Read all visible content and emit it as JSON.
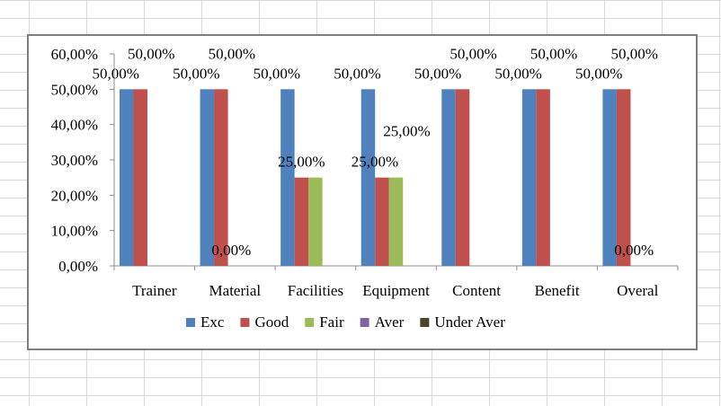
{
  "chart_data": {
    "type": "bar",
    "categories": [
      "Trainer",
      "Material",
      "Facilities",
      "Equipment",
      "Content",
      "Benefit",
      "Overal"
    ],
    "series": [
      {
        "name": "Exc",
        "color": "#4f81bd",
        "values": [
          0.5,
          0.5,
          0.5,
          0.5,
          0.5,
          0.5,
          0.5
        ]
      },
      {
        "name": "Good",
        "color": "#c0504d",
        "values": [
          0.5,
          0.5,
          0.25,
          0.25,
          0.5,
          0.5,
          0.5
        ]
      },
      {
        "name": "Fair",
        "color": "#9bbb59",
        "values": [
          0,
          0,
          0.25,
          0.25,
          0,
          0,
          0
        ]
      },
      {
        "name": "Aver",
        "color": "#8064a2",
        "values": [
          0,
          0,
          0,
          0,
          0,
          0,
          0
        ]
      },
      {
        "name": "Under Aver",
        "color": "#4a452a",
        "values": [
          0,
          0,
          0,
          0,
          0,
          0,
          0
        ]
      }
    ],
    "ylim": [
      0,
      0.6
    ],
    "yticks": [
      "0,00%",
      "10,00%",
      "20,00%",
      "30,00%",
      "40,00%",
      "50,00%",
      "60,00%"
    ],
    "data_labels": [
      {
        "text": "50,00%",
        "category": 0,
        "series": 0
      },
      {
        "text": "50,00%",
        "category": 0,
        "series": 1
      },
      {
        "text": "50,00%",
        "category": 1,
        "series": 0
      },
      {
        "text": "50,00%",
        "category": 1,
        "series": 1
      },
      {
        "text": "0,00%",
        "category": 1,
        "series": 2
      },
      {
        "text": "50,00%",
        "category": 2,
        "series": 0
      },
      {
        "text": "25,00%",
        "category": 2,
        "series": 1
      },
      {
        "text": "50,00%",
        "category": 3,
        "series": 0
      },
      {
        "text": "25,00%",
        "category": 3,
        "series": 1
      },
      {
        "text": "25,00%",
        "category": 3,
        "series": 2
      },
      {
        "text": "50,00%",
        "category": 4,
        "series": 0
      },
      {
        "text": "50,00%",
        "category": 4,
        "series": 1
      },
      {
        "text": "50,00%",
        "category": 5,
        "series": 0
      },
      {
        "text": "50,00%",
        "category": 5,
        "series": 1
      },
      {
        "text": "50,00%",
        "category": 6,
        "series": 0
      },
      {
        "text": "50,00%",
        "category": 6,
        "series": 1
      },
      {
        "text": "0,00%",
        "category": 6,
        "series": 2
      }
    ],
    "legend_position": "bottom",
    "grid": false,
    "title": "",
    "xlabel": "",
    "ylabel": ""
  }
}
